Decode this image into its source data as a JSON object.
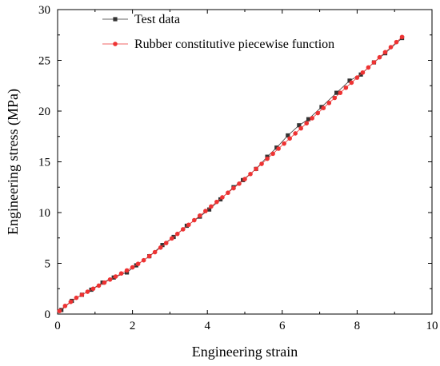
{
  "chart_data": {
    "type": "scatter",
    "title": "",
    "xlabel": "Engineering strain",
    "ylabel": "Engineering stress (MPa)",
    "xlim": [
      0,
      10
    ],
    "ylim": [
      0,
      30
    ],
    "x_ticks": [
      0,
      2,
      4,
      6,
      8,
      10
    ],
    "y_ticks": [
      0,
      5,
      10,
      15,
      20,
      25,
      30
    ],
    "grid": false,
    "legend_position": "top",
    "series": [
      {
        "name": "Test data",
        "color": "#333333",
        "marker": "square",
        "line": true,
        "x": [
          0.1,
          0.38,
          0.65,
          0.9,
          1.2,
          1.5,
          1.85,
          2.1,
          2.45,
          2.8,
          3.1,
          3.45,
          3.8,
          4.05,
          4.35,
          4.7,
          4.95,
          5.3,
          5.6,
          5.85,
          6.15,
          6.45,
          6.7,
          7.05,
          7.45,
          7.8,
          8.1,
          8.45,
          8.75,
          9.2
        ],
        "y": [
          0.4,
          1.3,
          1.9,
          2.4,
          3.1,
          3.6,
          4.1,
          4.8,
          5.7,
          6.8,
          7.6,
          8.7,
          9.6,
          10.3,
          11.3,
          12.5,
          13.2,
          14.3,
          15.5,
          16.4,
          17.6,
          18.6,
          19.2,
          20.4,
          21.8,
          23.0,
          23.6,
          24.8,
          25.7,
          27.2
        ]
      },
      {
        "name": "Rubber constitutive piecewise function",
        "color": "#ee3333",
        "marker": "circle",
        "line": true,
        "x": [
          0.05,
          0.2,
          0.35,
          0.5,
          0.65,
          0.8,
          0.95,
          1.1,
          1.25,
          1.4,
          1.55,
          1.7,
          1.85,
          2.0,
          2.15,
          2.3,
          2.45,
          2.6,
          2.75,
          2.9,
          3.05,
          3.2,
          3.35,
          3.5,
          3.65,
          3.8,
          3.95,
          4.1,
          4.25,
          4.4,
          4.55,
          4.7,
          4.85,
          5.0,
          5.15,
          5.3,
          5.45,
          5.6,
          5.75,
          5.9,
          6.05,
          6.2,
          6.35,
          6.5,
          6.65,
          6.8,
          6.95,
          7.1,
          7.25,
          7.4,
          7.55,
          7.7,
          7.85,
          8.0,
          8.15,
          8.3,
          8.45,
          8.6,
          8.75,
          8.9,
          9.05,
          9.2
        ],
        "y": [
          0.3,
          0.8,
          1.2,
          1.6,
          1.9,
          2.2,
          2.5,
          2.8,
          3.1,
          3.4,
          3.7,
          4.0,
          4.3,
          4.6,
          4.95,
          5.3,
          5.7,
          6.1,
          6.55,
          7.0,
          7.45,
          7.9,
          8.35,
          8.8,
          9.25,
          9.7,
          10.15,
          10.6,
          11.05,
          11.5,
          11.95,
          12.4,
          12.85,
          13.3,
          13.8,
          14.3,
          14.8,
          15.3,
          15.8,
          16.3,
          16.8,
          17.3,
          17.8,
          18.3,
          18.8,
          19.3,
          19.8,
          20.3,
          20.8,
          21.3,
          21.8,
          22.3,
          22.8,
          23.3,
          23.8,
          24.3,
          24.8,
          25.3,
          25.8,
          26.3,
          26.8,
          27.3
        ]
      }
    ]
  }
}
